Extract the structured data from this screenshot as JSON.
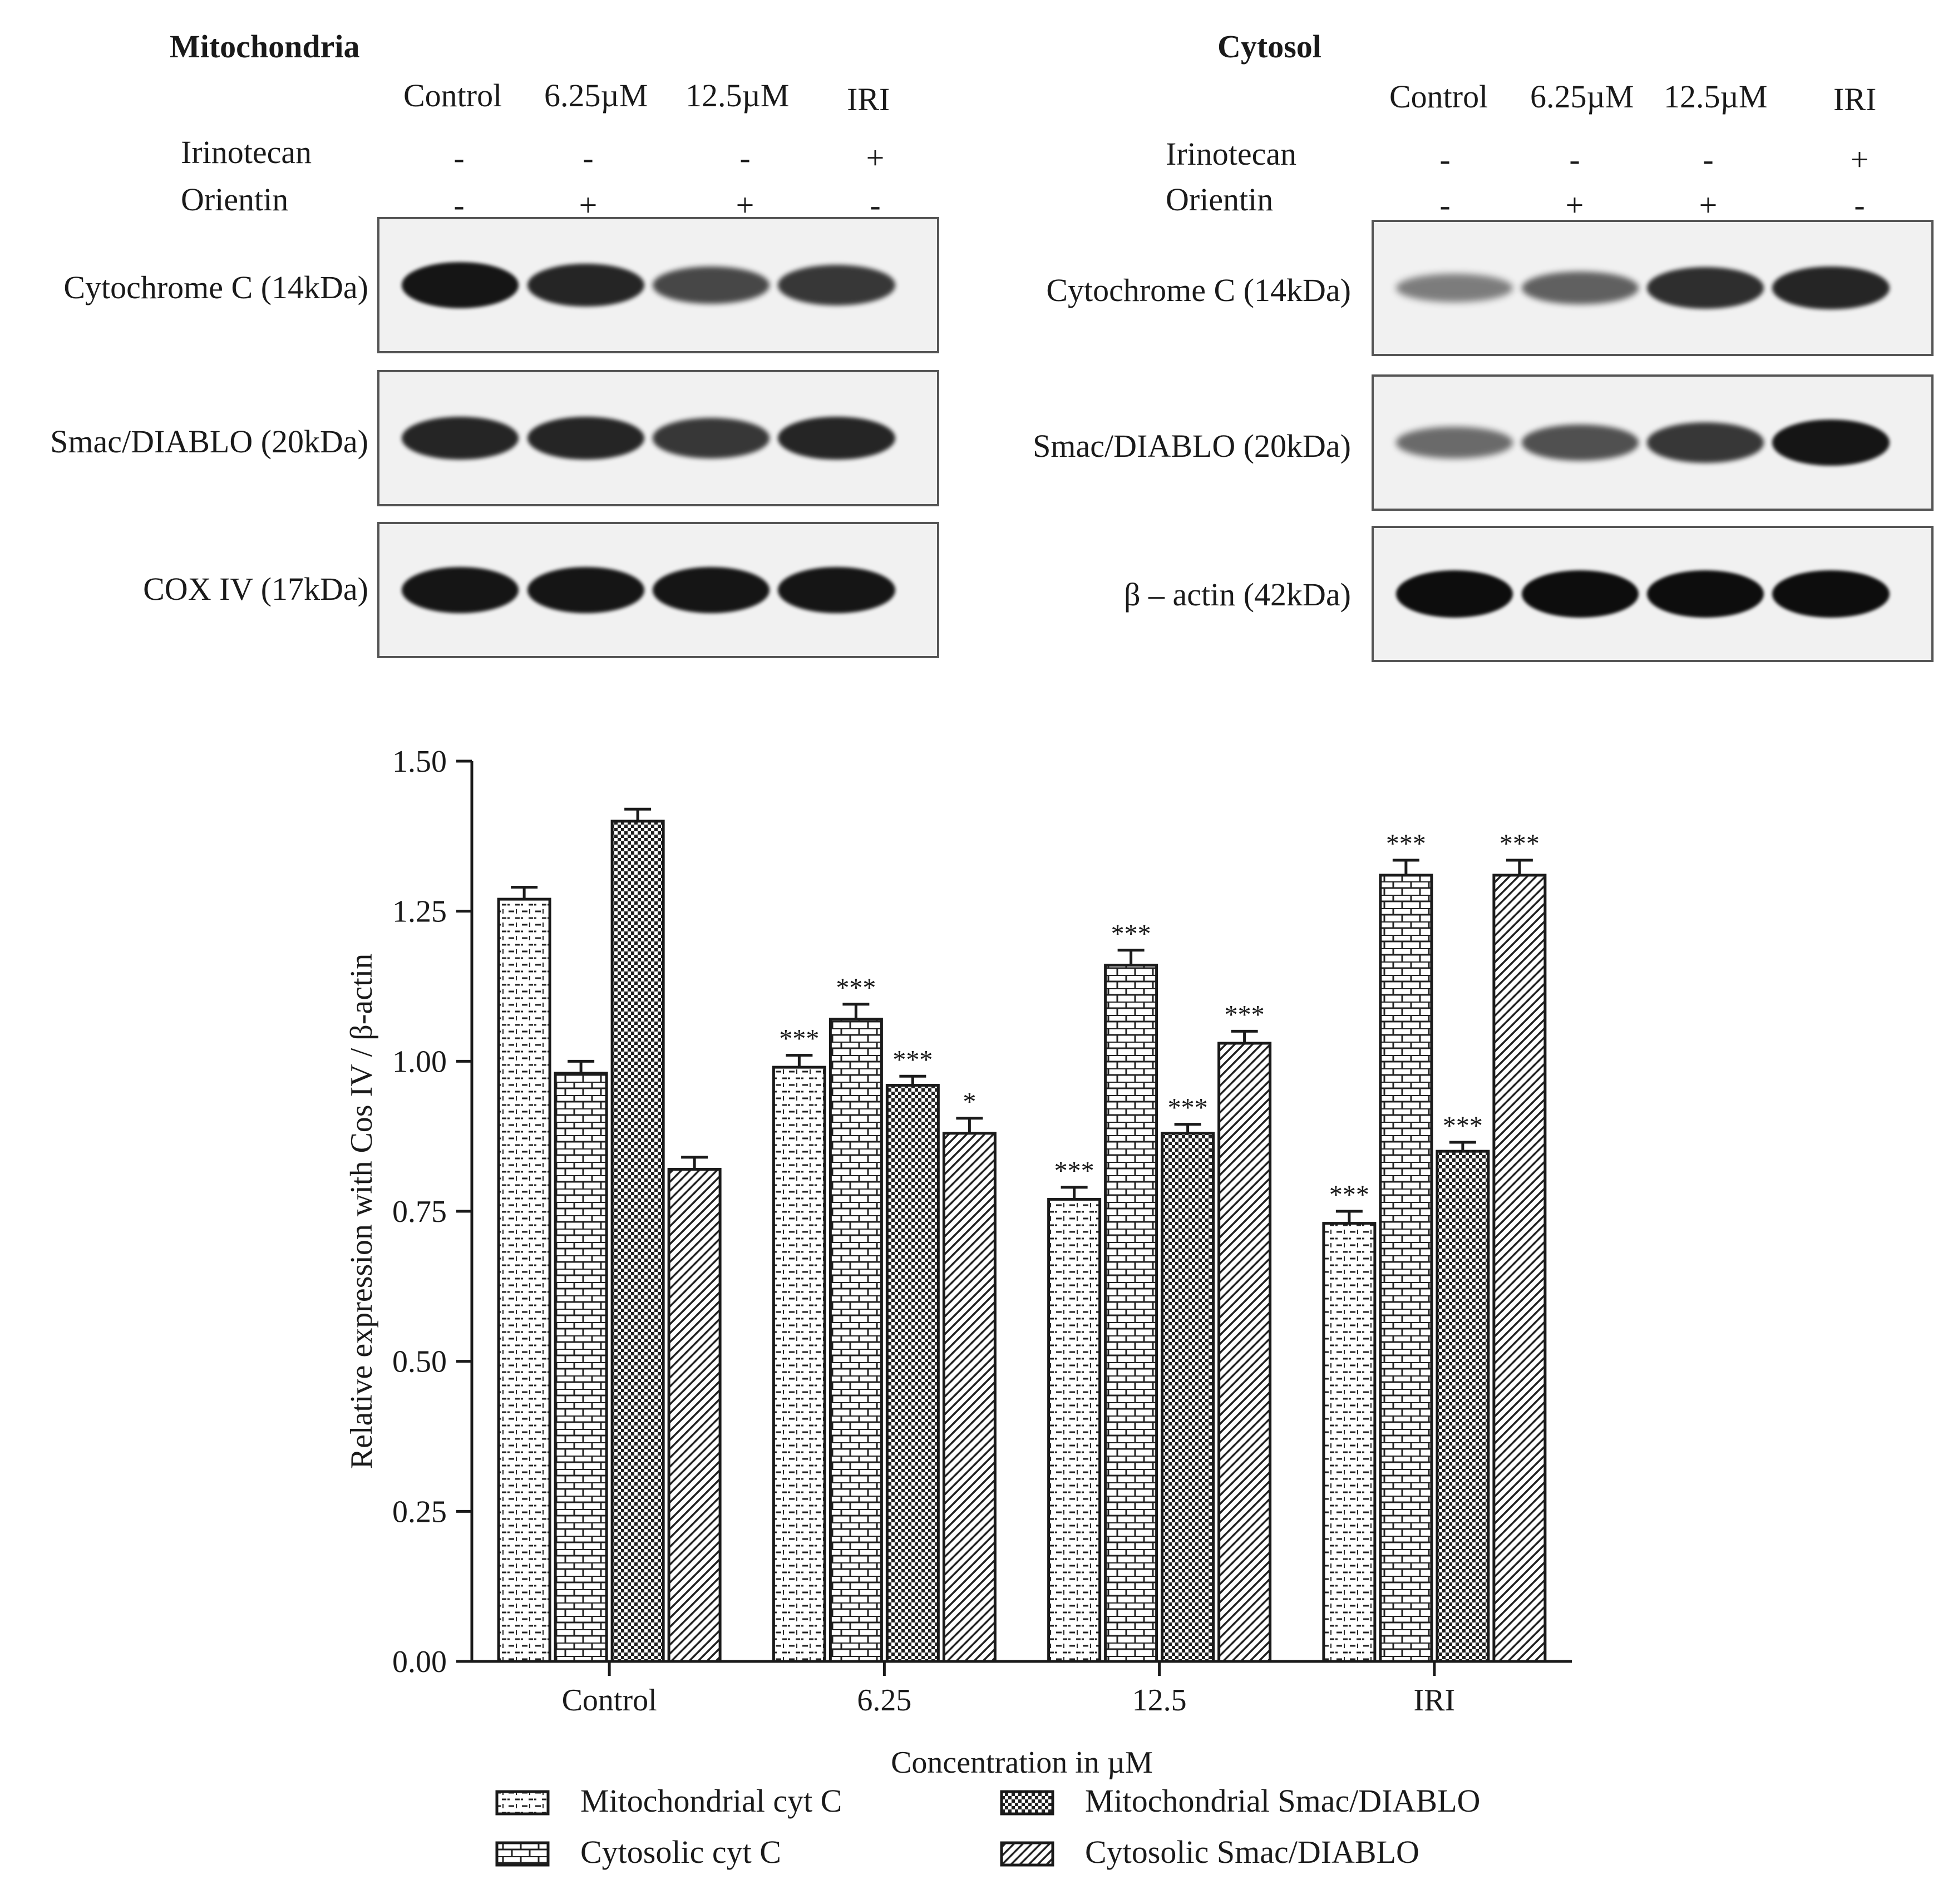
{
  "blots": {
    "mitochondria": {
      "title": "Mitochondria",
      "columns": [
        "Control",
        "6.25µM",
        "12.5µM",
        "IRI"
      ],
      "treatments": [
        {
          "label": "Irinotecan",
          "signs": [
            "-",
            "-",
            "-",
            "+"
          ]
        },
        {
          "label": "Orientin",
          "signs": [
            "-",
            "+",
            "+",
            "-"
          ]
        }
      ],
      "bands": [
        {
          "label": "Cytochrome C (14kDa)",
          "intensity": [
            0.95,
            0.85,
            0.65,
            0.75
          ]
        },
        {
          "label": "Smac/DIABLO (20kDa)",
          "intensity": [
            0.85,
            0.85,
            0.75,
            0.85
          ]
        },
        {
          "label": "COX IV (17kDa)",
          "intensity": [
            0.95,
            0.95,
            0.95,
            0.95
          ]
        }
      ]
    },
    "cytosol": {
      "title": "Cytosol",
      "columns": [
        "Control",
        "6.25µM",
        "12.5µM",
        "IRI"
      ],
      "treatments": [
        {
          "label": "Irinotecan",
          "signs": [
            "-",
            "-",
            "-",
            "+"
          ]
        },
        {
          "label": "Orientin",
          "signs": [
            "-",
            "+",
            "+",
            "-"
          ]
        }
      ],
      "bands": [
        {
          "label": "Cytochrome C (14kDa)",
          "intensity": [
            0.35,
            0.5,
            0.8,
            0.85
          ]
        },
        {
          "label": "Smac/DIABLO (20kDa)",
          "intensity": [
            0.45,
            0.6,
            0.75,
            0.95
          ]
        },
        {
          "label": "β – actin (42kDa)",
          "intensity": [
            1.0,
            1.0,
            1.0,
            1.0
          ]
        }
      ]
    }
  },
  "chart_data": {
    "type": "bar",
    "categories": [
      "Control",
      "6.25",
      "12.5",
      "IRI"
    ],
    "xlabel": "Concentration in µM",
    "ylabel": "Relative expression with Cos IV /  β-actin",
    "ylim": [
      0,
      1.5
    ],
    "yticks": [
      "0.00",
      "0.25",
      "0.50",
      "0.75",
      "1.00",
      "1.25",
      "1.50"
    ],
    "legend_placement": "bottom",
    "series": [
      {
        "name": "Mitochondrial cyt C",
        "pattern": "dash",
        "values": [
          1.27,
          0.99,
          0.77,
          0.73
        ],
        "errors": [
          0.02,
          0.02,
          0.02,
          0.02
        ],
        "significance": [
          "",
          "***",
          "***",
          "***"
        ]
      },
      {
        "name": "Cytosolic cyt C",
        "pattern": "brick",
        "values": [
          0.98,
          1.07,
          1.16,
          1.31
        ],
        "errors": [
          0.02,
          0.025,
          0.025,
          0.025
        ],
        "significance": [
          "",
          "***",
          "***",
          "***"
        ]
      },
      {
        "name": "Mitochondrial Smac/DIABLO",
        "pattern": "check",
        "values": [
          1.4,
          0.96,
          0.88,
          0.85
        ],
        "errors": [
          0.02,
          0.015,
          0.015,
          0.015
        ],
        "significance": [
          "",
          "***",
          "***",
          "***"
        ]
      },
      {
        "name": "Cytosolic Smac/DIABLO",
        "pattern": "diag",
        "values": [
          0.82,
          0.88,
          1.03,
          1.31
        ],
        "errors": [
          0.02,
          0.025,
          0.02,
          0.025
        ],
        "significance": [
          "",
          "*",
          "***",
          "***"
        ]
      }
    ]
  }
}
